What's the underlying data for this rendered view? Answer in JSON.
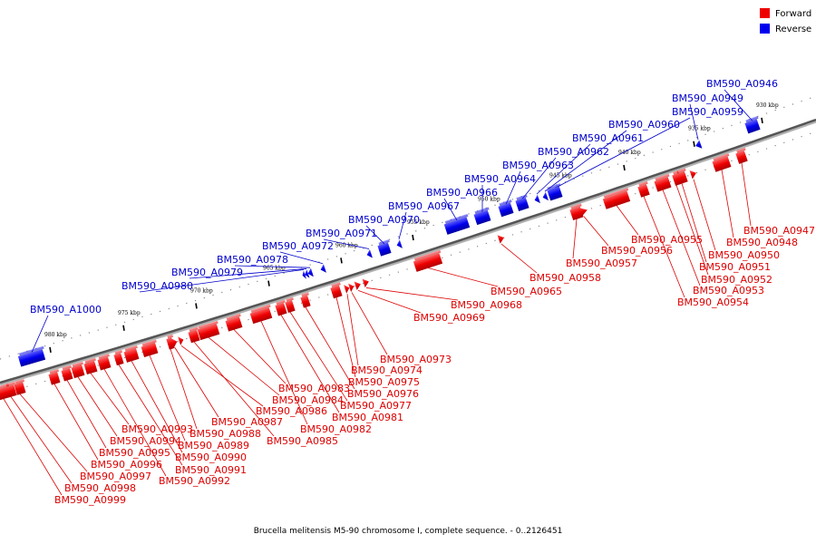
{
  "legend": {
    "forward_label": "Forward",
    "reverse_label": "Reverse",
    "forward_color": "#ee0000",
    "reverse_color": "#0000ee"
  },
  "caption": "Brucella melitensis M5-90 chromosome I, complete sequence. - 0..2126451",
  "scale_ticks": [
    "930 kbp",
    "935 kbp",
    "940 kbp",
    "945 kbp",
    "950 kbp",
    "955 kbp",
    "960 kbp",
    "965 kbp",
    "970 kbp",
    "975 kbp",
    "980 kbp"
  ],
  "genes_reverse": [
    "BM590_A0946",
    "BM590_A0949",
    "BM590_A0959",
    "BM590_A0960",
    "BM590_A0961",
    "BM590_A0962",
    "BM590_A0963",
    "BM590_A0964",
    "BM590_A0966",
    "BM590_A0967",
    "BM590_A0970",
    "BM590_A0971",
    "BM590_A0972",
    "BM590_A0978",
    "BM590_A0979",
    "BM590_A0980",
    "BM590_A1000"
  ],
  "genes_forward": [
    "BM590_A0947",
    "BM590_A0948",
    "BM590_A0950",
    "BM590_A0951",
    "BM590_A0952",
    "BM590_A0953",
    "BM590_A0954",
    "BM590_A0955",
    "BM590_A0956",
    "BM590_A0957",
    "BM590_A0958",
    "BM590_A0965",
    "BM590_A0968",
    "BM590_A0969",
    "BM590_A0973",
    "BM590_A0974",
    "BM590_A0975",
    "BM590_A0976",
    "BM590_A0977",
    "BM590_A0981",
    "BM590_A0982",
    "BM590_A0983",
    "BM590_A0984",
    "BM590_A0985",
    "BM590_A0986",
    "BM590_A0987",
    "BM590_A0988",
    "BM590_A0989",
    "BM590_A0990",
    "BM590_A0991",
    "BM590_A0992",
    "BM590_A0993",
    "BM590_A0994",
    "BM590_A0995",
    "BM590_A0996",
    "BM590_A0997",
    "BM590_A0998",
    "BM590_A0999"
  ]
}
